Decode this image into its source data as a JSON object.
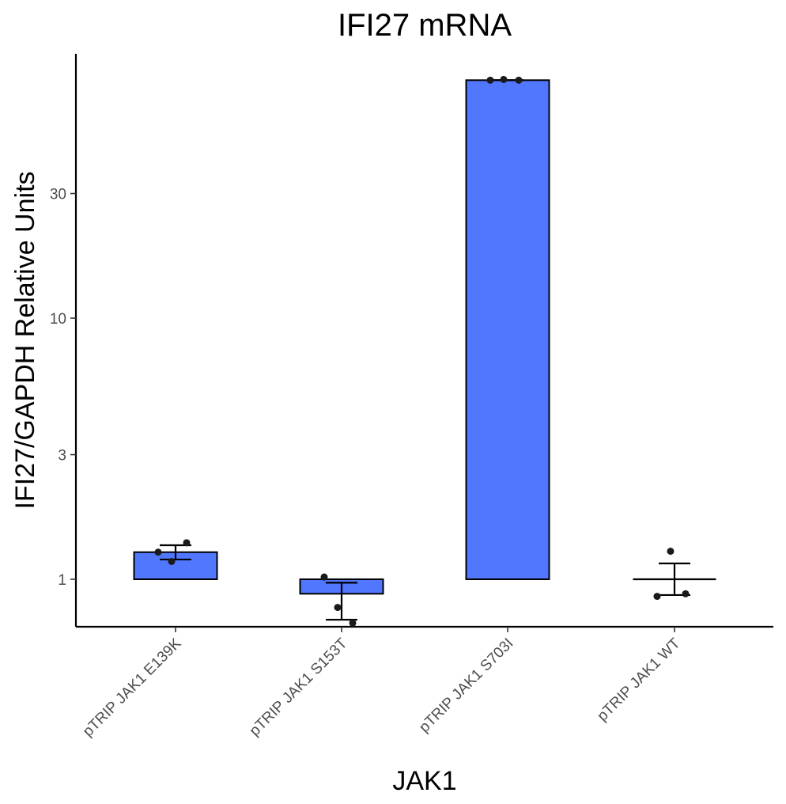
{
  "chart_data": {
    "type": "bar",
    "title": "IFI27 mRNA",
    "xlabel": "JAK1",
    "ylabel": "IFI27/GAPDH Relative Units",
    "y_scale": "log10",
    "bar_baseline": 1,
    "ylim": [
      0.56,
      110
    ],
    "yticks": [
      1,
      3,
      10,
      30
    ],
    "ytick_labels": [
      "1",
      "3",
      "10",
      "30"
    ],
    "categories": [
      "pTRIP JAK1 E139K",
      "pTRIP JAK1 S153T",
      "pTRIP JAK1 S703I",
      "pTRIP JAK1 WT"
    ],
    "values": [
      1.27,
      0.88,
      81.5,
      1.0
    ],
    "error_low": [
      1.19,
      0.7,
      81.5,
      0.87
    ],
    "error_high": [
      1.35,
      0.97,
      81.5,
      1.15
    ],
    "points": [
      [
        1.27,
        1.17,
        1.38
      ],
      [
        1.02,
        0.78,
        0.68
      ],
      [
        81.5,
        82.0,
        81.5
      ],
      [
        0.86,
        1.28,
        0.88
      ]
    ],
    "colors": {
      "bar_fill": "#5277ff",
      "bar_edge": "#000000",
      "point": "#1a1a1a"
    },
    "grid": false,
    "legend": "none"
  }
}
